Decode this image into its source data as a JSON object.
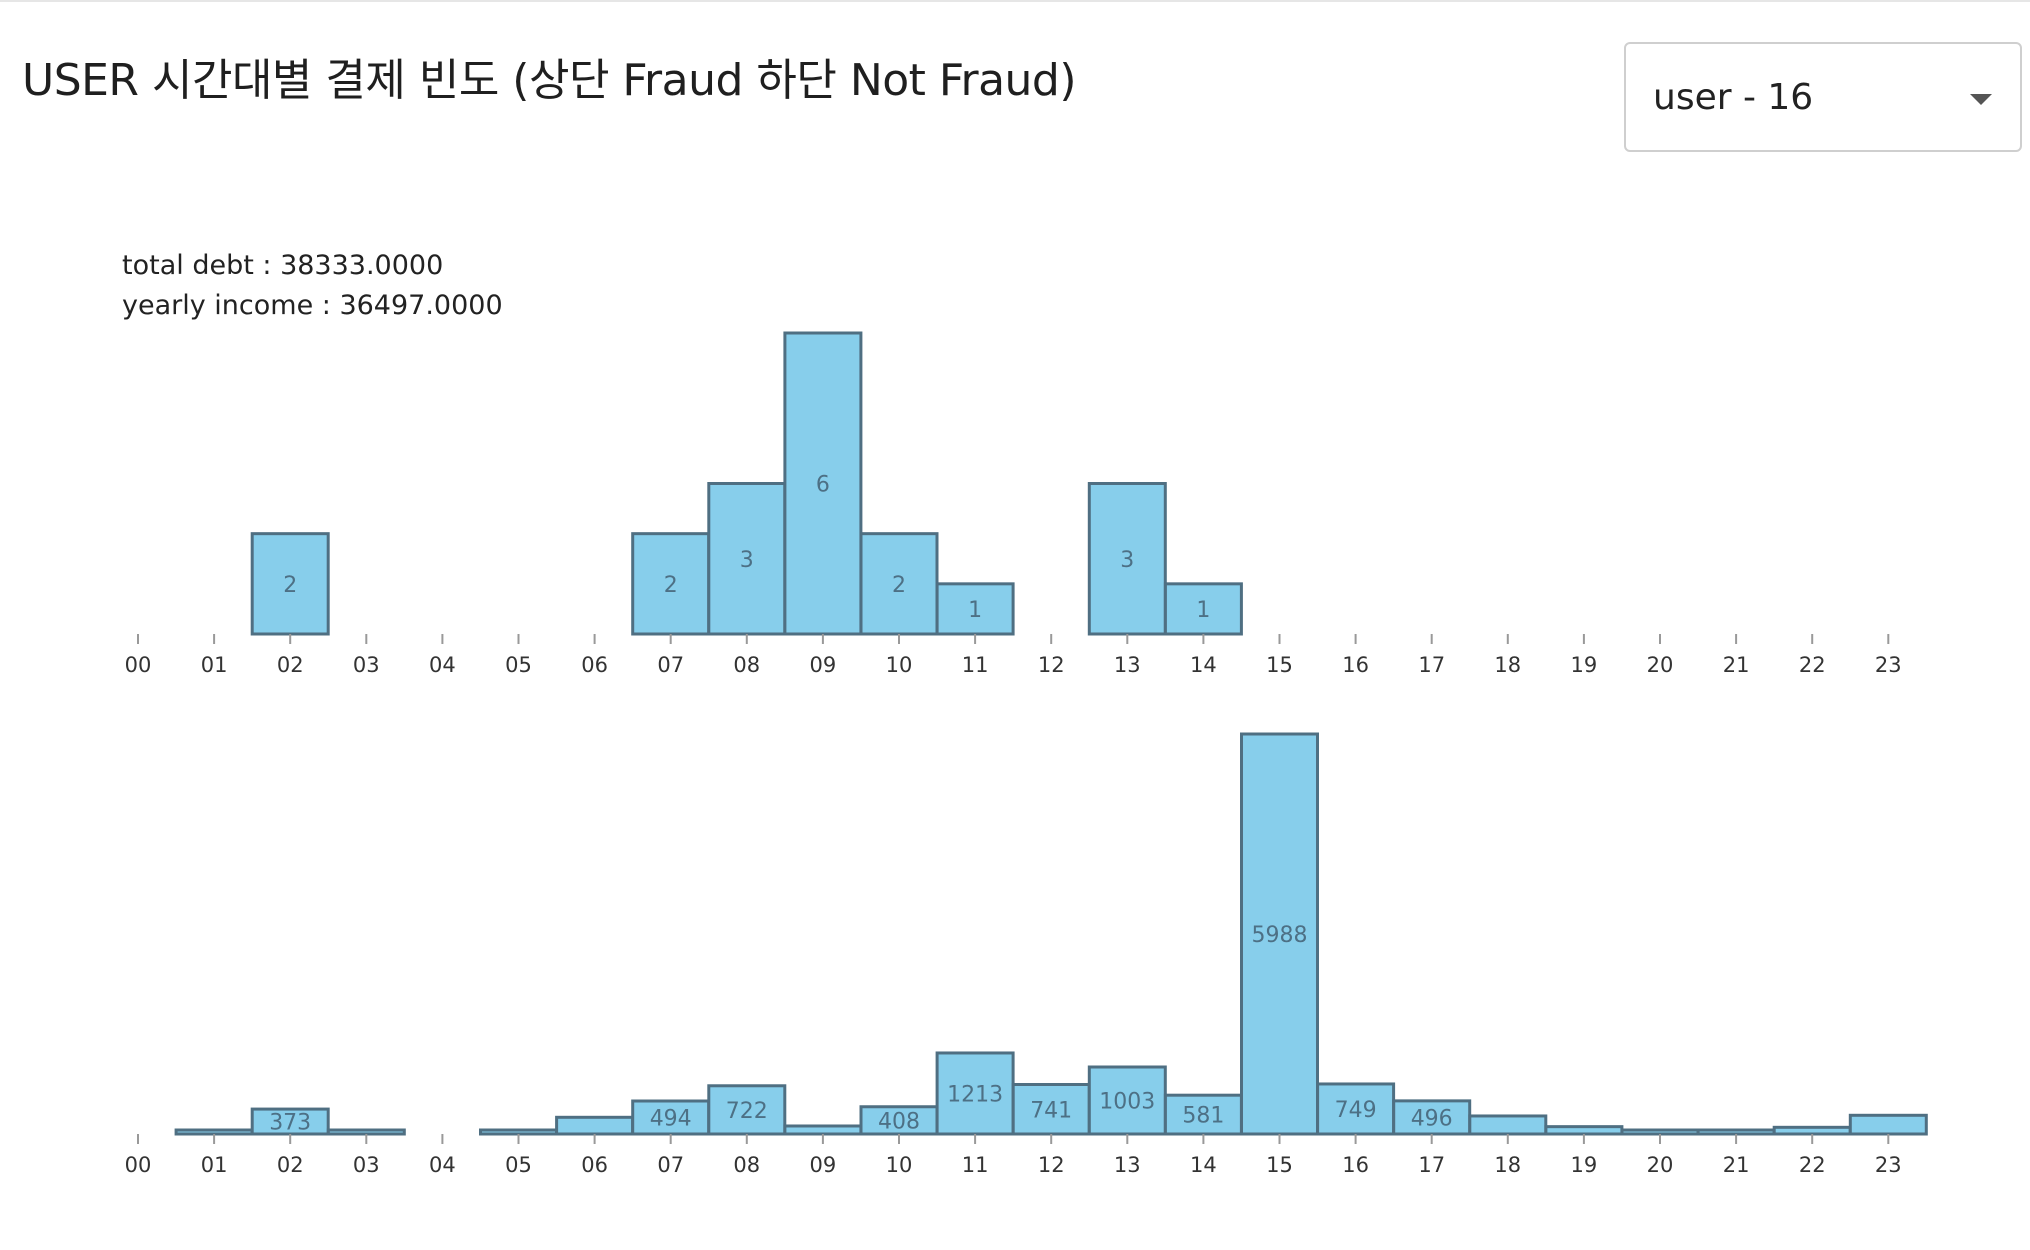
{
  "title": "USER 시간대별 결제 빈도 (상단 Fraud 하단 Not Fraud)",
  "user_select": {
    "selected": "user - 16"
  },
  "info": {
    "total_debt_label": "total debt : ",
    "total_debt_value": "38333.0000",
    "yearly_income_label": "yearly income : ",
    "yearly_income_value": "36497.0000"
  },
  "colors": {
    "bar_fill": "#87ceeb",
    "bar_stroke": "#4f6f82",
    "label": "#4d7085"
  },
  "chart_data": [
    {
      "type": "bar",
      "title": "",
      "xlabel": "",
      "ylabel": "",
      "categories": [
        "00",
        "01",
        "02",
        "03",
        "04",
        "05",
        "06",
        "07",
        "08",
        "09",
        "10",
        "11",
        "12",
        "13",
        "14",
        "15",
        "16",
        "17",
        "18",
        "19",
        "20",
        "21",
        "22",
        "23"
      ],
      "values": [
        0,
        0,
        2,
        0,
        0,
        0,
        0,
        2,
        3,
        6,
        2,
        1,
        0,
        3,
        1,
        0,
        0,
        0,
        0,
        0,
        0,
        0,
        0,
        0
      ],
      "labels": [
        "",
        "",
        "2",
        "",
        "",
        "",
        "",
        "2",
        "3",
        "6",
        "2",
        "1",
        "",
        "3",
        "1",
        "",
        "",
        "",
        "",
        "",
        "",
        "",
        "",
        ""
      ],
      "ylim": [
        0,
        6
      ]
    },
    {
      "type": "bar",
      "title": "",
      "xlabel": "",
      "ylabel": "",
      "categories": [
        "00",
        "01",
        "02",
        "03",
        "04",
        "05",
        "06",
        "07",
        "08",
        "09",
        "10",
        "11",
        "12",
        "13",
        "14",
        "15",
        "16",
        "17",
        "18",
        "19",
        "20",
        "21",
        "22",
        "23"
      ],
      "values": [
        0,
        40,
        373,
        40,
        0,
        40,
        250,
        494,
        722,
        120,
        408,
        1213,
        741,
        1003,
        581,
        5988,
        749,
        496,
        270,
        110,
        50,
        30,
        100,
        280
      ],
      "labels": [
        "",
        "",
        "373",
        "",
        "",
        "",
        "",
        "494",
        "722",
        "",
        "408",
        "1213",
        "741",
        "1003",
        "581",
        "5988",
        "749",
        "496",
        "",
        "",
        "",
        "",
        "",
        ""
      ],
      "ylim": [
        0,
        5988
      ]
    }
  ]
}
